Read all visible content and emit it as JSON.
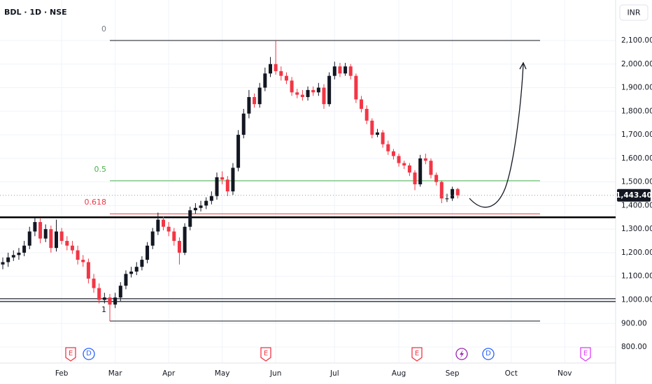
{
  "chart_data": {
    "type": "candlestick",
    "title": "BDL · 1D · NSE",
    "currency": "INR",
    "up_color": "#131722",
    "down_color": "#f23645",
    "categories": [
      null,
      null,
      null,
      null,
      null,
      null,
      null,
      null,
      null,
      null,
      null,
      "Feb",
      null,
      null,
      null,
      null,
      null,
      null,
      null,
      null,
      null,
      "Mar",
      null,
      null,
      null,
      null,
      null,
      null,
      null,
      null,
      null,
      "Apr",
      null,
      null,
      null,
      null,
      null,
      null,
      null,
      null,
      null,
      "May",
      null,
      null,
      null,
      null,
      null,
      null,
      null,
      null,
      null,
      "Jun",
      null,
      null,
      null,
      null,
      null,
      null,
      null,
      null,
      null,
      null,
      "Jul",
      null,
      null,
      null,
      null,
      null,
      null,
      null,
      null,
      null,
      null,
      null,
      "Aug",
      null,
      null,
      null,
      null,
      null,
      null,
      null,
      null,
      null,
      "Sep",
      null,
      null,
      null,
      null,
      null,
      null,
      null,
      null,
      null,
      null,
      "Oct",
      null,
      null,
      null,
      null,
      null,
      null,
      null,
      null,
      null,
      "Nov",
      null,
      null,
      null,
      null,
      null,
      null,
      null,
      null,
      null
    ],
    "open": [
      1150,
      1160,
      1180,
      1190,
      1200,
      1230,
      1290,
      1330,
      1260,
      1300,
      1220,
      1290,
      1250,
      1230,
      1210,
      1170,
      1160,
      1090,
      1050,
      1000,
      1010,
      980,
      1010,
      1060,
      1110,
      1120,
      1140,
      1170,
      1230,
      1290,
      1340,
      1310,
      1290,
      1250,
      1200,
      1310,
      1380,
      1390,
      1400,
      1420,
      1440,
      1520,
      1510,
      1460,
      1560,
      1700,
      1790,
      1860,
      1830,
      1900,
      1960,
      2000,
      1970,
      1950,
      1930,
      1880,
      1870,
      1860,
      1890,
      1880,
      1900,
      1830,
      1950,
      1990,
      1960,
      1990,
      1950,
      1850,
      1810,
      1760,
      1700,
      1710,
      1660,
      1630,
      1610,
      1580,
      1570,
      1540,
      1490,
      1600,
      1590,
      1530,
      1500,
      1430,
      1430,
      1470,
      null,
      null,
      null,
      null,
      null,
      null,
      null,
      null,
      null,
      null,
      null,
      null,
      null,
      null,
      null,
      null,
      null,
      null,
      null,
      null,
      null,
      null,
      null,
      null,
      null,
      null,
      null,
      null,
      null
    ],
    "high": [
      1180,
      1200,
      1210,
      1220,
      1250,
      1310,
      1350,
      1345,
      1320,
      1315,
      1340,
      1305,
      1270,
      1250,
      1230,
      1190,
      1175,
      1110,
      1070,
      1030,
      1025,
      1030,
      1075,
      1125,
      1140,
      1160,
      1185,
      1245,
      1305,
      1370,
      1355,
      1330,
      1305,
      1265,
      1325,
      1395,
      1410,
      1420,
      1435,
      1460,
      1540,
      1545,
      1525,
      1580,
      1720,
      1810,
      1890,
      1875,
      1920,
      1985,
      2030,
      2100,
      1990,
      1965,
      1945,
      1895,
      1890,
      1905,
      1905,
      1920,
      1915,
      1965,
      2010,
      2005,
      2005,
      2000,
      1960,
      1865,
      1825,
      1770,
      1725,
      1720,
      1675,
      1640,
      1620,
      1590,
      1580,
      1550,
      1615,
      1620,
      1600,
      1540,
      1505,
      1450,
      1480,
      1475,
      null,
      null,
      null,
      null,
      null,
      null,
      null,
      null,
      null,
      null,
      null,
      null,
      null,
      null,
      null,
      null,
      null,
      null,
      null,
      null,
      null,
      null,
      null,
      null,
      null,
      null,
      null,
      null,
      null
    ],
    "low": [
      1130,
      1140,
      1165,
      1170,
      1185,
      1215,
      1270,
      1240,
      1245,
      1200,
      1205,
      1235,
      1210,
      1195,
      1150,
      1140,
      1070,
      1030,
      985,
      985,
      910,
      965,
      995,
      1045,
      1095,
      1105,
      1125,
      1155,
      1215,
      1275,
      1295,
      1270,
      1230,
      1150,
      1190,
      1295,
      1365,
      1375,
      1385,
      1405,
      1425,
      1490,
      1440,
      1445,
      1545,
      1685,
      1770,
      1815,
      1815,
      1885,
      1945,
      1955,
      1930,
      1915,
      1865,
      1855,
      1845,
      1845,
      1865,
      1865,
      1810,
      1820,
      1935,
      1945,
      1950,
      1935,
      1835,
      1795,
      1745,
      1685,
      1690,
      1645,
      1615,
      1595,
      1565,
      1555,
      1525,
      1465,
      1480,
      1575,
      1515,
      1485,
      1410,
      1415,
      1420,
      1430,
      null,
      null,
      null,
      null,
      null,
      null,
      null,
      null,
      null,
      null,
      null,
      null,
      null,
      null,
      null,
      null,
      null,
      null,
      null,
      null,
      null,
      null,
      null,
      null,
      null,
      null,
      null,
      null,
      null
    ],
    "close": [
      1160,
      1180,
      1190,
      1200,
      1230,
      1290,
      1330,
      1260,
      1300,
      1220,
      1290,
      1250,
      1230,
      1210,
      1170,
      1160,
      1090,
      1050,
      1000,
      1010,
      980,
      1010,
      1060,
      1110,
      1120,
      1140,
      1170,
      1230,
      1290,
      1340,
      1310,
      1290,
      1250,
      1200,
      1310,
      1380,
      1390,
      1400,
      1420,
      1440,
      1520,
      1510,
      1460,
      1560,
      1700,
      1790,
      1860,
      1830,
      1900,
      1960,
      2000,
      1970,
      1950,
      1930,
      1880,
      1870,
      1860,
      1890,
      1880,
      1900,
      1830,
      1950,
      1990,
      1960,
      1990,
      1950,
      1850,
      1810,
      1760,
      1700,
      1710,
      1660,
      1630,
      1610,
      1580,
      1570,
      1540,
      1490,
      1600,
      1590,
      1530,
      1500,
      1430,
      1430,
      1470,
      1443.4,
      null,
      null,
      null,
      null,
      null,
      null,
      null,
      null,
      null,
      null,
      null,
      null,
      null,
      null,
      null,
      null,
      null,
      null,
      null,
      null,
      null,
      null,
      null,
      null,
      null,
      null,
      null,
      null,
      null
    ],
    "last_price": {
      "value": 1443.4,
      "label": "1,443.40"
    },
    "ylim": [
      732,
      2248
    ],
    "yticks": [
      {
        "value": 800,
        "label": "800.00"
      },
      {
        "value": 900,
        "label": "900.00"
      },
      {
        "value": 1000,
        "label": "1,000.00"
      },
      {
        "value": 1100,
        "label": "1,100.00"
      },
      {
        "value": 1200,
        "label": "1,200.00"
      },
      {
        "value": 1300,
        "label": "1,300.00"
      },
      {
        "value": 1400,
        "label": "1,400.00"
      },
      {
        "value": 1500,
        "label": "1,500.00"
      },
      {
        "value": 1600,
        "label": "1,600.00"
      },
      {
        "value": 1700,
        "label": "1,700.00"
      },
      {
        "value": 1800,
        "label": "1,800.00"
      },
      {
        "value": 1900,
        "label": "1,900.00"
      },
      {
        "value": 2000,
        "label": "2,000.00"
      },
      {
        "value": 2100,
        "label": "2,100.00"
      }
    ],
    "grid": true,
    "fib_levels": [
      {
        "label": "0",
        "value": 2100,
        "color": "#131722",
        "text_color": "#787b86"
      },
      {
        "label": "0.5",
        "value": 1505,
        "color": "#4caf50",
        "text_color": "#4caf50"
      },
      {
        "label": "0.618",
        "value": 1365,
        "color": "#f23645",
        "text_color": "#f23645"
      },
      {
        "label": "1",
        "value": 910,
        "color": "#131722",
        "text_color": "#131722"
      }
    ],
    "hlines": [
      {
        "value": 1350,
        "color": "#000000",
        "width": 2.5
      },
      {
        "value": 1005,
        "color": "#131722",
        "width": 1.2
      },
      {
        "value": 993,
        "color": "#131722",
        "width": 1.2
      }
    ],
    "events": [
      {
        "label": "E",
        "color": "#f23645"
      },
      {
        "label": "D",
        "color": "#2962ff"
      },
      {
        "label": "E",
        "color": "#f23645"
      },
      {
        "label": "E",
        "color": "#f23645"
      },
      {
        "label": "D",
        "color": "#2962ff"
      },
      {
        "label": "E",
        "color": "#e040fb"
      }
    ]
  }
}
